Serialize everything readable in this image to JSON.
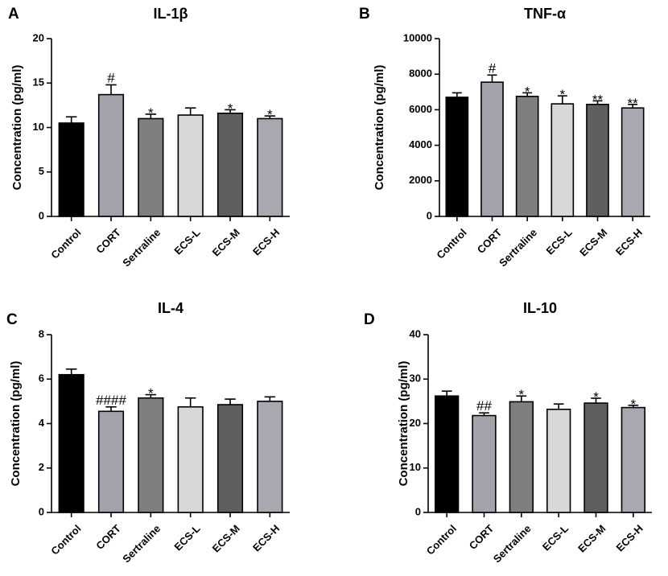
{
  "categories": [
    "Control",
    "CORT",
    "Sertraline",
    "ECS-L",
    "ECS-M",
    "ECS-H"
  ],
  "bar_colors": [
    "#000000",
    "#a3a3ab",
    "#7f7f7f",
    "#d8d8d8",
    "#5f5f5f",
    "#a8a8b0"
  ],
  "chart_data": [
    {
      "type": "bar",
      "letter": "A",
      "title": "IL-1β",
      "ylabel": "Concentration (pg/ml)",
      "ylim": [
        0,
        20
      ],
      "yticks": [
        0,
        5,
        10,
        15,
        20
      ],
      "ytick_labels": [
        "0",
        "5",
        "10",
        "15",
        "20"
      ],
      "categories": [
        "Control",
        "CORT",
        "Sertraline",
        "ECS-L",
        "ECS-M",
        "ECS-H"
      ],
      "values": [
        10.5,
        13.7,
        11.0,
        11.4,
        11.6,
        11.0
      ],
      "errors": [
        0.7,
        1.1,
        0.5,
        0.8,
        0.4,
        0.3
      ],
      "significance": [
        "",
        "#",
        "*",
        "",
        "*",
        "*"
      ]
    },
    {
      "type": "bar",
      "letter": "B",
      "title": "TNF-α",
      "ylabel": "Concentration (pg/ml)",
      "ylim": [
        0,
        10000
      ],
      "yticks": [
        0,
        2000,
        4000,
        6000,
        8000,
        10000
      ],
      "ytick_labels": [
        "0",
        "2000",
        "4000",
        "6000",
        "8000",
        "10000"
      ],
      "categories": [
        "Control",
        "CORT",
        "Sertraline",
        "ECS-L",
        "ECS-M",
        "ECS-H"
      ],
      "values": [
        6700,
        7550,
        6750,
        6330,
        6300,
        6100
      ],
      "errors": [
        250,
        400,
        200,
        450,
        200,
        200
      ],
      "significance": [
        "",
        "#",
        "*",
        "*",
        "**",
        "**"
      ]
    },
    {
      "type": "bar",
      "letter": "C",
      "title": "IL-4",
      "ylabel": "Concentration (pg/ml)",
      "ylim": [
        0,
        8
      ],
      "yticks": [
        0,
        2,
        4,
        6,
        8
      ],
      "ytick_labels": [
        "0",
        "2",
        "4",
        "6",
        "8"
      ],
      "categories": [
        "Control",
        "CORT",
        "Sertraline",
        "ECS-L",
        "ECS-M",
        "ECS-H"
      ],
      "values": [
        6.2,
        4.55,
        5.15,
        4.75,
        4.85,
        5.0
      ],
      "errors": [
        0.25,
        0.2,
        0.15,
        0.4,
        0.25,
        0.2
      ],
      "significance": [
        "",
        "####",
        "*",
        "",
        "",
        ""
      ]
    },
    {
      "type": "bar",
      "letter": "D",
      "title": "IL-10",
      "ylabel": "Concentration (pg/ml)",
      "ylim": [
        0,
        40
      ],
      "yticks": [
        0,
        10,
        20,
        30,
        40
      ],
      "ytick_labels": [
        "0",
        "10",
        "20",
        "30",
        "40"
      ],
      "categories": [
        "Control",
        "CORT",
        "Sertraline",
        "ECS-L",
        "ECS-M",
        "ECS-H"
      ],
      "values": [
        26.2,
        21.8,
        24.9,
        23.2,
        24.6,
        23.6
      ],
      "errors": [
        1.1,
        0.6,
        1.3,
        1.2,
        1.1,
        0.5
      ],
      "significance": [
        "",
        "##",
        "*",
        "",
        "*",
        "*"
      ]
    }
  ]
}
